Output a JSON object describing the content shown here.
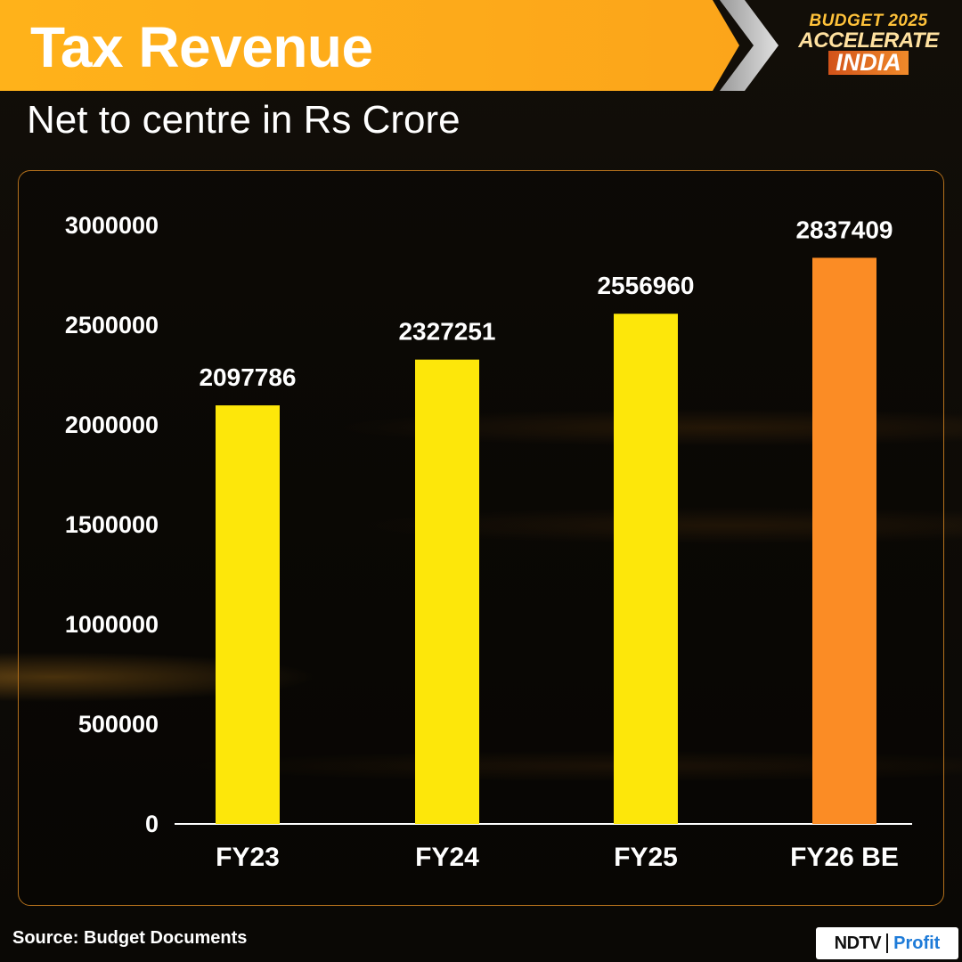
{
  "header": {
    "title": "Tax Revenue",
    "subtitle": "Net to centre in Rs Crore",
    "logo_line1": "BUDGET 2025",
    "logo_line2": "ACCELERATE",
    "logo_line3": "INDIA"
  },
  "footer": {
    "source": "Source: Budget Documents",
    "brand_left": "NDTV",
    "brand_right": "Profit"
  },
  "colors": {
    "accent": "#fca51a",
    "bar_actual": "#fde70a",
    "bar_estimate": "#fb8c25"
  },
  "chart_data": {
    "type": "bar",
    "title": "Tax Revenue",
    "subtitle": "Net to centre in Rs Crore",
    "categories": [
      "FY23",
      "FY24",
      "FY25",
      "FY26 BE"
    ],
    "values": [
      2097786,
      2327251,
      2556960,
      2837409
    ],
    "value_labels": [
      "2097786",
      "2327251",
      "2556960",
      "2837409"
    ],
    "bar_colors": [
      "#fde70a",
      "#fde70a",
      "#fde70a",
      "#fb8c25"
    ],
    "ylim": [
      0,
      3000000
    ],
    "yticks": [
      0,
      500000,
      1000000,
      1500000,
      2000000,
      2500000,
      3000000
    ],
    "ytick_labels": [
      "0",
      "500000",
      "1000000",
      "1500000",
      "2000000",
      "2500000",
      "3000000"
    ],
    "xlabel": "",
    "ylabel": "",
    "grid": false,
    "legend": "none"
  }
}
